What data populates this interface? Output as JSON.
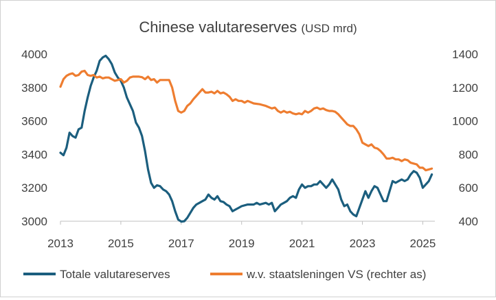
{
  "chart_data": {
    "type": "line",
    "title": "Chinese valutareserves",
    "title_unit": "(USD mrd)",
    "x_ticks": [
      "2013",
      "2015",
      "2017",
      "2019",
      "2021",
      "2023",
      "2025"
    ],
    "y_left_ticks": [
      "3000",
      "3200",
      "3400",
      "3600",
      "3800",
      "4000"
    ],
    "y_right_ticks": [
      "400",
      "600",
      "800",
      "1000",
      "1200",
      "1400"
    ],
    "ylim_left": [
      3000,
      4000
    ],
    "ylim_right": [
      400,
      1400
    ],
    "xlim": [
      2013.0,
      2025.4
    ],
    "grid": false,
    "legend_position": "bottom",
    "series": [
      {
        "name": "Totale valutareserves",
        "axis": "left",
        "color": "#1b5e7e",
        "points": [
          [
            2013.0,
            3410
          ],
          [
            2013.1,
            3395
          ],
          [
            2013.2,
            3440
          ],
          [
            2013.3,
            3530
          ],
          [
            2013.4,
            3510
          ],
          [
            2013.5,
            3500
          ],
          [
            2013.6,
            3550
          ],
          [
            2013.7,
            3560
          ],
          [
            2013.8,
            3660
          ],
          [
            2013.9,
            3740
          ],
          [
            2014.0,
            3810
          ],
          [
            2014.1,
            3860
          ],
          [
            2014.2,
            3900
          ],
          [
            2014.3,
            3960
          ],
          [
            2014.4,
            3980
          ],
          [
            2014.5,
            3990
          ],
          [
            2014.6,
            3970
          ],
          [
            2014.7,
            3940
          ],
          [
            2014.8,
            3890
          ],
          [
            2014.9,
            3860
          ],
          [
            2015.0,
            3840
          ],
          [
            2015.1,
            3800
          ],
          [
            2015.2,
            3740
          ],
          [
            2015.3,
            3700
          ],
          [
            2015.4,
            3660
          ],
          [
            2015.5,
            3590
          ],
          [
            2015.6,
            3560
          ],
          [
            2015.7,
            3510
          ],
          [
            2015.8,
            3420
          ],
          [
            2015.9,
            3310
          ],
          [
            2016.0,
            3230
          ],
          [
            2016.1,
            3200
          ],
          [
            2016.2,
            3215
          ],
          [
            2016.3,
            3210
          ],
          [
            2016.4,
            3190
          ],
          [
            2016.5,
            3180
          ],
          [
            2016.6,
            3160
          ],
          [
            2016.7,
            3120
          ],
          [
            2016.8,
            3060
          ],
          [
            2016.9,
            3010
          ],
          [
            2017.0,
            2998
          ],
          [
            2017.1,
            3000
          ],
          [
            2017.2,
            3020
          ],
          [
            2017.3,
            3050
          ],
          [
            2017.4,
            3080
          ],
          [
            2017.5,
            3100
          ],
          [
            2017.6,
            3110
          ],
          [
            2017.7,
            3120
          ],
          [
            2017.8,
            3130
          ],
          [
            2017.9,
            3160
          ],
          [
            2018.0,
            3140
          ],
          [
            2018.1,
            3130
          ],
          [
            2018.2,
            3150
          ],
          [
            2018.3,
            3120
          ],
          [
            2018.4,
            3115
          ],
          [
            2018.5,
            3100
          ],
          [
            2018.6,
            3090
          ],
          [
            2018.7,
            3060
          ],
          [
            2018.8,
            3070
          ],
          [
            2018.9,
            3080
          ],
          [
            2019.0,
            3090
          ],
          [
            2019.2,
            3100
          ],
          [
            2019.4,
            3100
          ],
          [
            2019.5,
            3110
          ],
          [
            2019.6,
            3100
          ],
          [
            2019.8,
            3110
          ],
          [
            2019.9,
            3100
          ],
          [
            2020.0,
            3110
          ],
          [
            2020.1,
            3060
          ],
          [
            2020.2,
            3080
          ],
          [
            2020.3,
            3100
          ],
          [
            2020.4,
            3110
          ],
          [
            2020.5,
            3120
          ],
          [
            2020.6,
            3140
          ],
          [
            2020.7,
            3150
          ],
          [
            2020.8,
            3140
          ],
          [
            2020.9,
            3190
          ],
          [
            2021.0,
            3220
          ],
          [
            2021.1,
            3200
          ],
          [
            2021.2,
            3210
          ],
          [
            2021.3,
            3210
          ],
          [
            2021.4,
            3220
          ],
          [
            2021.5,
            3220
          ],
          [
            2021.6,
            3240
          ],
          [
            2021.7,
            3220
          ],
          [
            2021.8,
            3200
          ],
          [
            2021.9,
            3220
          ],
          [
            2022.0,
            3250
          ],
          [
            2022.1,
            3220
          ],
          [
            2022.2,
            3190
          ],
          [
            2022.3,
            3130
          ],
          [
            2022.4,
            3090
          ],
          [
            2022.5,
            3100
          ],
          [
            2022.6,
            3060
          ],
          [
            2022.7,
            3040
          ],
          [
            2022.8,
            3030
          ],
          [
            2022.9,
            3080
          ],
          [
            2023.0,
            3130
          ],
          [
            2023.1,
            3180
          ],
          [
            2023.2,
            3140
          ],
          [
            2023.3,
            3180
          ],
          [
            2023.4,
            3210
          ],
          [
            2023.5,
            3200
          ],
          [
            2023.6,
            3160
          ],
          [
            2023.7,
            3120
          ],
          [
            2023.8,
            3120
          ],
          [
            2023.9,
            3180
          ],
          [
            2024.0,
            3240
          ],
          [
            2024.1,
            3230
          ],
          [
            2024.2,
            3240
          ],
          [
            2024.3,
            3250
          ],
          [
            2024.4,
            3240
          ],
          [
            2024.5,
            3250
          ],
          [
            2024.6,
            3280
          ],
          [
            2024.7,
            3300
          ],
          [
            2024.8,
            3290
          ],
          [
            2024.9,
            3260
          ],
          [
            2025.0,
            3200
          ],
          [
            2025.1,
            3220
          ],
          [
            2025.2,
            3240
          ],
          [
            2025.3,
            3280
          ]
        ]
      },
      {
        "name": "w.v. staatsleningen VS (rechter as)",
        "axis": "right",
        "color": "#ee7d30",
        "points": [
          [
            2013.0,
            1205
          ],
          [
            2013.1,
            1250
          ],
          [
            2013.2,
            1270
          ],
          [
            2013.3,
            1280
          ],
          [
            2013.4,
            1285
          ],
          [
            2013.5,
            1270
          ],
          [
            2013.6,
            1275
          ],
          [
            2013.7,
            1295
          ],
          [
            2013.8,
            1300
          ],
          [
            2013.9,
            1275
          ],
          [
            2014.0,
            1270
          ],
          [
            2014.1,
            1275
          ],
          [
            2014.2,
            1260
          ],
          [
            2014.3,
            1265
          ],
          [
            2014.4,
            1255
          ],
          [
            2014.5,
            1260
          ],
          [
            2014.6,
            1260
          ],
          [
            2014.7,
            1250
          ],
          [
            2014.8,
            1240
          ],
          [
            2014.9,
            1245
          ],
          [
            2015.0,
            1250
          ],
          [
            2015.1,
            1230
          ],
          [
            2015.2,
            1240
          ],
          [
            2015.3,
            1260
          ],
          [
            2015.4,
            1265
          ],
          [
            2015.5,
            1265
          ],
          [
            2015.6,
            1265
          ],
          [
            2015.7,
            1262
          ],
          [
            2015.8,
            1250
          ],
          [
            2015.9,
            1265
          ],
          [
            2016.0,
            1245
          ],
          [
            2016.1,
            1250
          ],
          [
            2016.2,
            1230
          ],
          [
            2016.3,
            1245
          ],
          [
            2016.4,
            1245
          ],
          [
            2016.5,
            1245
          ],
          [
            2016.6,
            1245
          ],
          [
            2016.7,
            1200
          ],
          [
            2016.8,
            1120
          ],
          [
            2016.9,
            1060
          ],
          [
            2017.0,
            1050
          ],
          [
            2017.1,
            1060
          ],
          [
            2017.2,
            1090
          ],
          [
            2017.3,
            1105
          ],
          [
            2017.4,
            1130
          ],
          [
            2017.5,
            1150
          ],
          [
            2017.6,
            1170
          ],
          [
            2017.7,
            1190
          ],
          [
            2017.8,
            1170
          ],
          [
            2017.9,
            1170
          ],
          [
            2018.0,
            1175
          ],
          [
            2018.1,
            1165
          ],
          [
            2018.2,
            1180
          ],
          [
            2018.3,
            1165
          ],
          [
            2018.4,
            1170
          ],
          [
            2018.5,
            1160
          ],
          [
            2018.6,
            1145
          ],
          [
            2018.7,
            1120
          ],
          [
            2018.8,
            1130
          ],
          [
            2018.9,
            1120
          ],
          [
            2019.0,
            1120
          ],
          [
            2019.1,
            1110
          ],
          [
            2019.2,
            1120
          ],
          [
            2019.4,
            1105
          ],
          [
            2019.6,
            1100
          ],
          [
            2019.8,
            1090
          ],
          [
            2020.0,
            1075
          ],
          [
            2020.1,
            1080
          ],
          [
            2020.2,
            1060
          ],
          [
            2020.3,
            1050
          ],
          [
            2020.4,
            1060
          ],
          [
            2020.5,
            1050
          ],
          [
            2020.6,
            1055
          ],
          [
            2020.7,
            1045
          ],
          [
            2020.8,
            1040
          ],
          [
            2020.9,
            1045
          ],
          [
            2021.0,
            1040
          ],
          [
            2021.1,
            1060
          ],
          [
            2021.2,
            1050
          ],
          [
            2021.3,
            1060
          ],
          [
            2021.4,
            1075
          ],
          [
            2021.5,
            1080
          ],
          [
            2021.6,
            1070
          ],
          [
            2021.7,
            1075
          ],
          [
            2021.8,
            1065
          ],
          [
            2021.9,
            1060
          ],
          [
            2022.0,
            1060
          ],
          [
            2022.1,
            1055
          ],
          [
            2022.2,
            1040
          ],
          [
            2022.3,
            1020
          ],
          [
            2022.4,
            1000
          ],
          [
            2022.5,
            980
          ],
          [
            2022.6,
            970
          ],
          [
            2022.7,
            970
          ],
          [
            2022.8,
            950
          ],
          [
            2022.9,
            920
          ],
          [
            2023.0,
            870
          ],
          [
            2023.1,
            860
          ],
          [
            2023.2,
            850
          ],
          [
            2023.3,
            860
          ],
          [
            2023.4,
            840
          ],
          [
            2023.5,
            835
          ],
          [
            2023.6,
            820
          ],
          [
            2023.7,
            800
          ],
          [
            2023.8,
            775
          ],
          [
            2023.9,
            775
          ],
          [
            2024.0,
            780
          ],
          [
            2024.1,
            770
          ],
          [
            2024.2,
            770
          ],
          [
            2024.3,
            760
          ],
          [
            2024.4,
            770
          ],
          [
            2024.5,
            765
          ],
          [
            2024.6,
            750
          ],
          [
            2024.7,
            745
          ],
          [
            2024.8,
            740
          ],
          [
            2024.9,
            720
          ],
          [
            2025.0,
            720
          ],
          [
            2025.1,
            705
          ],
          [
            2025.2,
            710
          ],
          [
            2025.3,
            715
          ]
        ]
      }
    ]
  }
}
